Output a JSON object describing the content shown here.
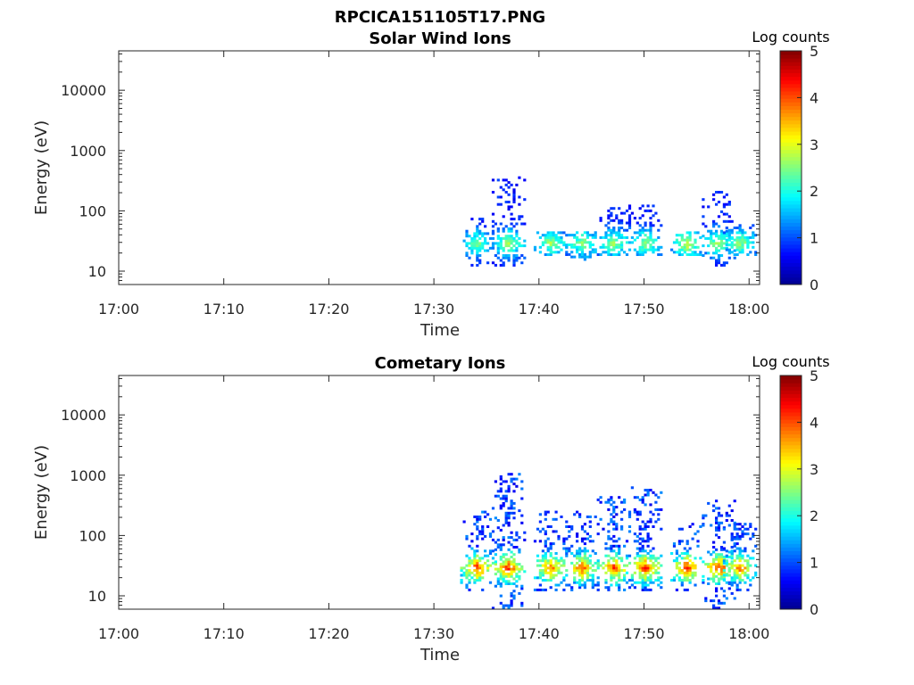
{
  "figure_title": "RPCICA151105T17.PNG",
  "colormap": [
    "#00008f",
    "#0000ff",
    "#0080ff",
    "#00ffff",
    "#80ff80",
    "#ffff00",
    "#ff8000",
    "#ff0000",
    "#800000"
  ],
  "chart_data": [
    {
      "type": "heatmap",
      "title": "Solar Wind Ions",
      "xlabel": "Time",
      "ylabel": "Energy (eV)",
      "x_ticks": [
        "17:00",
        "17:10",
        "17:20",
        "17:30",
        "17:40",
        "17:50",
        "18:00"
      ],
      "x_range": [
        "17:00",
        "18:01"
      ],
      "y_scale": "log",
      "y_ticks": [
        "10",
        "100",
        "1000",
        "10000"
      ],
      "y_range": [
        6,
        45000
      ],
      "colorbar": {
        "label": "Log counts",
        "range": [
          0,
          5
        ],
        "ticks": [
          "0",
          "1",
          "2",
          "3",
          "4",
          "5"
        ]
      },
      "features": [
        {
          "time": "17:34",
          "energy_range": [
            12,
            80
          ],
          "log_counts": [
            0.5,
            2.3
          ]
        },
        {
          "time": "17:37",
          "energy_range": [
            12,
            350
          ],
          "log_counts": [
            0.5,
            2.5
          ]
        },
        {
          "time": "17:41",
          "energy_range": [
            18,
            45
          ],
          "log_counts": [
            0.5,
            2.5
          ]
        },
        {
          "time": "17:44",
          "energy_range": [
            15,
            45
          ],
          "log_counts": [
            0.5,
            2.5
          ]
        },
        {
          "time": "17:47",
          "energy_range": [
            18,
            120
          ],
          "log_counts": [
            0.5,
            2.5
          ]
        },
        {
          "time": "17:50",
          "energy_range": [
            18,
            120
          ],
          "log_counts": [
            0.5,
            2.5
          ]
        },
        {
          "time": "17:54",
          "energy_range": [
            18,
            45
          ],
          "log_counts": [
            0.5,
            2.8
          ]
        },
        {
          "time": "17:57",
          "energy_range": [
            12,
            200
          ],
          "log_counts": [
            0.5,
            2.5
          ]
        },
        {
          "time": "17:59",
          "energy_range": [
            18,
            55
          ],
          "log_counts": [
            0.5,
            2.5
          ]
        }
      ]
    },
    {
      "type": "heatmap",
      "title": "Cometary Ions",
      "xlabel": "Time",
      "ylabel": "Energy (eV)",
      "x_ticks": [
        "17:00",
        "17:10",
        "17:20",
        "17:30",
        "17:40",
        "17:50",
        "18:00"
      ],
      "x_range": [
        "17:00",
        "18:01"
      ],
      "y_scale": "log",
      "y_ticks": [
        "10",
        "100",
        "1000",
        "10000"
      ],
      "y_range": [
        6,
        45000
      ],
      "colorbar": {
        "label": "Log counts",
        "range": [
          0,
          5
        ],
        "ticks": [
          "0",
          "1",
          "2",
          "3",
          "4",
          "5"
        ]
      },
      "features": [
        {
          "time": "17:34",
          "energy_range": [
            12,
            250
          ],
          "log_counts": [
            0.5,
            3.8
          ]
        },
        {
          "time": "17:37",
          "energy_range": [
            6,
            1100
          ],
          "log_counts": [
            0.5,
            3.8
          ]
        },
        {
          "time": "17:41",
          "energy_range": [
            12,
            250
          ],
          "log_counts": [
            0.5,
            3.5
          ]
        },
        {
          "time": "17:44",
          "energy_range": [
            12,
            250
          ],
          "log_counts": [
            0.5,
            3.6
          ]
        },
        {
          "time": "17:47",
          "energy_range": [
            12,
            450
          ],
          "log_counts": [
            0.5,
            3.8
          ]
        },
        {
          "time": "17:50",
          "energy_range": [
            12,
            600
          ],
          "log_counts": [
            0.5,
            3.8
          ]
        },
        {
          "time": "17:54",
          "energy_range": [
            12,
            150
          ],
          "log_counts": [
            0.5,
            3.8
          ]
        },
        {
          "time": "17:57",
          "energy_range": [
            6,
            450
          ],
          "log_counts": [
            0.5,
            3.8
          ]
        },
        {
          "time": "17:59",
          "energy_range": [
            12,
            150
          ],
          "log_counts": [
            0.5,
            3.5
          ]
        }
      ]
    }
  ]
}
